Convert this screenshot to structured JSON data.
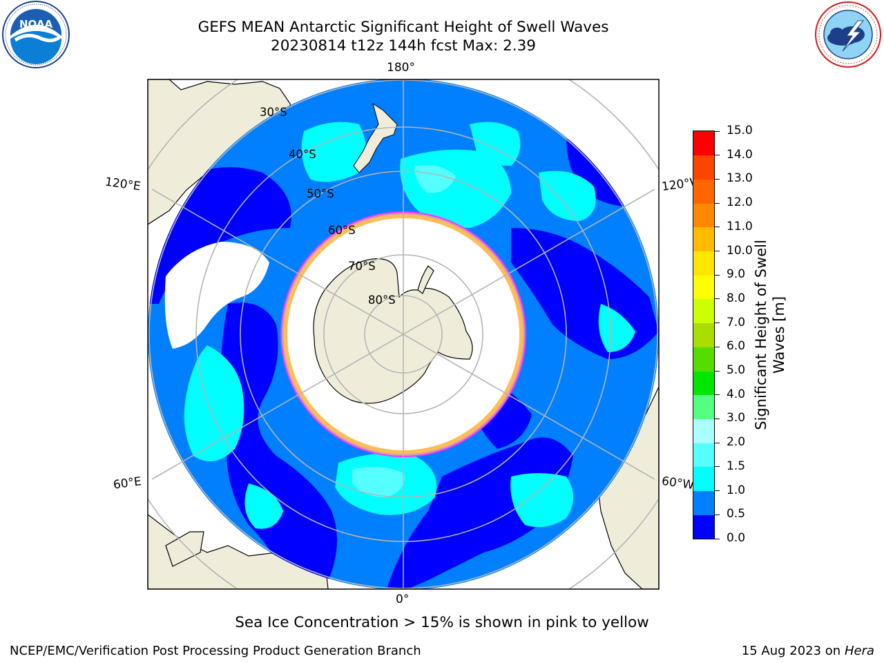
{
  "header": {
    "title_line1": "GEFS MEAN Antarctic Significant Height of Swell Waves",
    "title_line2": "20230814 t12z 144h fcst   Max: 2.39"
  },
  "map": {
    "projection": "south polar stereographic",
    "longitude_labels": [
      "180°",
      "120°E",
      "120°W",
      "60°E",
      "60°W",
      "0°"
    ],
    "latitude_labels": [
      "30°S",
      "40°S",
      "50°S",
      "60°S",
      "70°S",
      "80°S"
    ],
    "colors": {
      "land": "#efedda",
      "ice_zone_fill": "#ffffff",
      "ice_edge": "#ff33ff",
      "ice_edge_yellow": "#ffcc44",
      "grid": "#b4b4b4",
      "ocean_outside": "#ffffff"
    }
  },
  "colorbar": {
    "label_line1": "Significant Height of Swell",
    "label_line2": "Waves [m]",
    "ticks": [
      "0.0",
      "0.5",
      "1.0",
      "1.5",
      "2.0",
      "3.0",
      "4.0",
      "5.0",
      "6.0",
      "7.0",
      "8.0",
      "9.0",
      "10.0",
      "11.0",
      "12.0",
      "13.0",
      "14.0",
      "15.0"
    ],
    "colors": [
      "#0000ff",
      "#0080ff",
      "#00ffff",
      "#55ffff",
      "#aaffff",
      "#55ff80",
      "#00e600",
      "#55dd00",
      "#aadd00",
      "#ccff00",
      "#ffff00",
      "#ffe600",
      "#ffbb00",
      "#ff8800",
      "#ff6600",
      "#ff4400",
      "#ff0000"
    ]
  },
  "logos": {
    "left": {
      "icon": "noaa-logo",
      "text": "NOAA",
      "ring_text": "NATIONAL OCEANIC AND ATMOSPHERIC ADMINISTRATION · U.S. DEPARTMENT OF COMMERCE"
    },
    "right": {
      "icon": "nws-logo",
      "ring_text": "NATIONAL WEATHER SERVICE"
    }
  },
  "footer": {
    "note": "Sea Ice Concentration > 15% is shown in pink to yellow",
    "credit": "NCEP/EMC/Verification Post Processing Product Generation Branch",
    "date": "15 Aug 2023 on",
    "machine": "Hera"
  }
}
